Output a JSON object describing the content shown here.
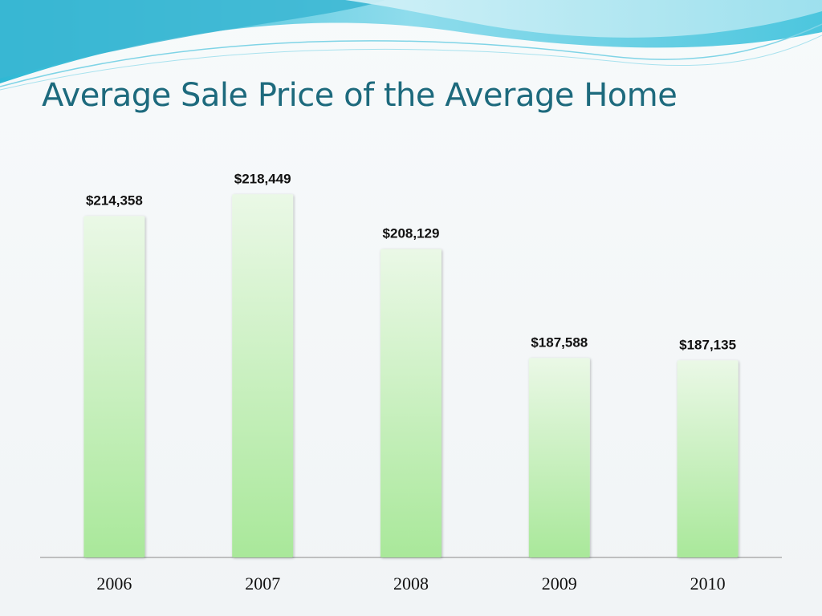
{
  "slide": {
    "title": "Average Sale Price of the Average Home"
  },
  "colors": {
    "title": "#1d6a7d",
    "bar_top": "#eaf8e6",
    "bar_bottom": "#a9e89a",
    "wave_light": "#bfeaf3",
    "wave_dark": "#3fc3dc"
  },
  "chart_data": {
    "type": "bar",
    "title": "Average Sale Price of the Average Home",
    "categories": [
      "2006",
      "2007",
      "2008",
      "2009",
      "2010"
    ],
    "values": [
      214358,
      218449,
      208129,
      187588,
      187135
    ],
    "value_labels": [
      "$214,358",
      "$218,449",
      "$208,129",
      "$187,588",
      "$187,135"
    ],
    "xlabel": "",
    "ylabel": "",
    "ylim": [
      150000,
      220000
    ],
    "grid": false,
    "legend": "none"
  }
}
